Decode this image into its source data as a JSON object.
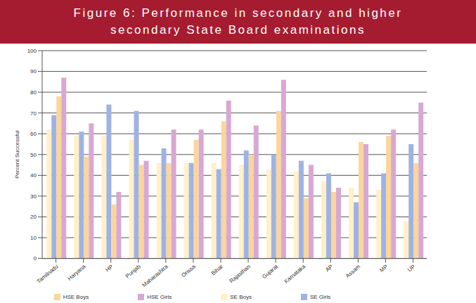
{
  "chart_data": {
    "type": "bar",
    "title": "Figure 6: Performance in secondary and higher secondary State Board examinations",
    "y_label": "Percent Successful",
    "categories": [
      "Tamilnadu",
      "Haryana",
      "HP",
      "Punjab",
      "Maharashtra",
      "Orissa",
      "Bihar",
      "Rajasthan",
      "Gujarat",
      "Karnataka",
      "AP",
      "Assam",
      "MP",
      "UP"
    ],
    "series": [
      {
        "name": "SE Boys",
        "color": "#FFF0C8",
        "values": [
          62,
          59,
          59,
          57,
          46,
          46,
          46,
          45,
          43,
          42,
          37,
          34,
          33,
          18
        ]
      },
      {
        "name": "SE Girls",
        "color": "#9FB3E3",
        "values": [
          69,
          61,
          74,
          71,
          53,
          46,
          43,
          52,
          50,
          47,
          41,
          27,
          41,
          55
        ]
      },
      {
        "name": "HSE Boys",
        "color": "#FAD69C",
        "values": [
          78,
          49,
          26,
          45,
          46,
          57,
          66,
          50,
          71,
          29,
          32,
          56,
          59,
          46
        ]
      },
      {
        "name": "HSE Girls",
        "color": "#D9A8D2",
        "values": [
          87,
          65,
          32,
          47,
          62,
          62,
          76,
          64,
          86,
          45,
          34,
          55,
          62,
          75
        ]
      }
    ],
    "ylim": [
      0,
      100
    ],
    "yticks": [
      0,
      10,
      20,
      30,
      40,
      50,
      60,
      70,
      80,
      90,
      100
    ],
    "grid": true,
    "legend": "bottom"
  }
}
